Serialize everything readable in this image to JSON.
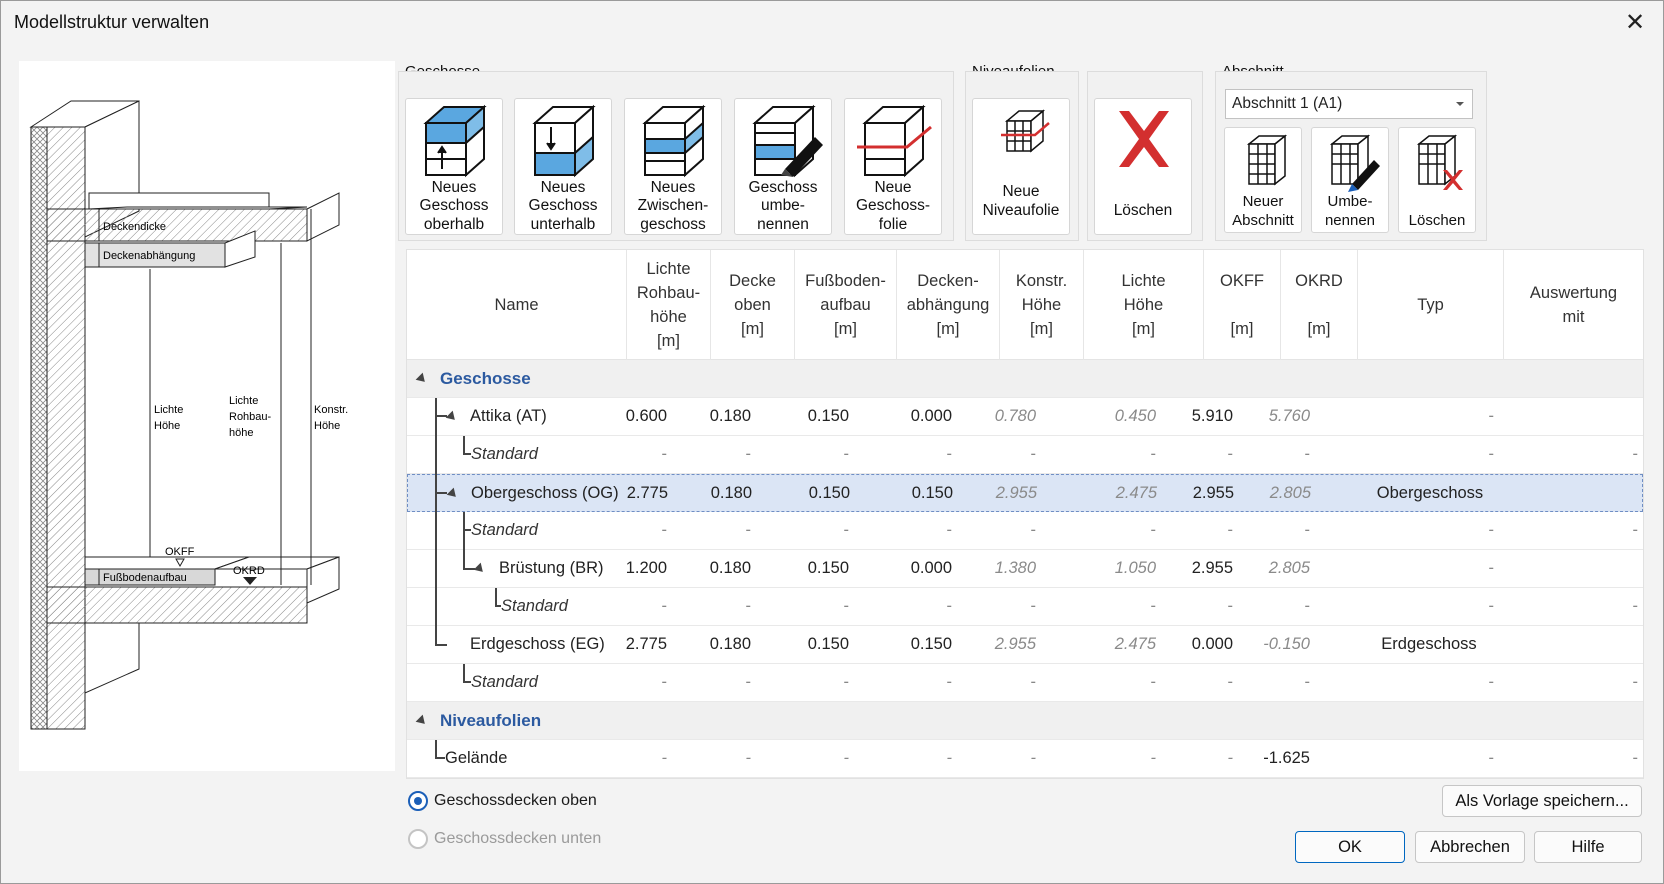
{
  "window": {
    "title": "Modellstruktur verwalten"
  },
  "diagram": {
    "labels": {
      "deckendicke": "Deckendicke",
      "deckenabhaengung": "Deckenabhängung",
      "lichte_hoehe": "Lichte\nHöhe",
      "lichte_rohbauhoehe": "Lichte\nRohbau-\nhöhe",
      "konstr_hoehe": "Konstr.\nHöhe",
      "okff": "OKFF",
      "okrd": "OKRD",
      "fussbodenaufbau": "Fußbodenaufbau"
    }
  },
  "toolbar": {
    "geschosse_label": "Geschosse",
    "niveaufolien_label": "Niveaufolien",
    "abschnitt_label": "Abschnitt",
    "buttons": {
      "new_above": "Neues\nGeschoss\noberhalb",
      "new_below": "Neues\nGeschoss\nunterhalb",
      "new_between": "Neues\nZwischen-\ngeschoss",
      "rename": "Geschoss\numbe-\nnennen",
      "new_foil": "Neue\nGeschoss-\nfolie",
      "new_level_foil": "Neue\nNiveaufolie",
      "delete": "Löschen",
      "new_section": "Neuer\nAbschnitt",
      "rename_section": "Umbe-\nnennen",
      "delete_section": "Löschen"
    },
    "abschnitt_selected": "Abschnitt 1 (A1)"
  },
  "table": {
    "headers": {
      "name": "Name",
      "lichte_rohbauhoehe": "Lichte\nRohbau-\nhöhe\n[m]",
      "decke_oben": "Decke\noben\n[m]",
      "fussbodenaufbau": "Fußboden-\naufbau\n[m]",
      "deckenabhaengung": "Decken-\nabhängung\n[m]",
      "konstr_hoehe": "Konstr.\nHöhe\n[m]",
      "lichte_hoehe": "Lichte\nHöhe\n[m]",
      "okff": "OKFF\n\n[m]",
      "okrd": "OKRD\n\n[m]",
      "typ": "Typ",
      "auswertung": "Auswertung\nmit\n"
    },
    "sections": {
      "geschosse": "Geschosse",
      "niveaufolien": "Niveaufolien"
    },
    "rows": [
      {
        "name": "Attika (AT)",
        "v": [
          "0.600",
          "0.180",
          "0.150",
          "0.000",
          "0.780",
          "0.450",
          "5.910",
          "5.760",
          "-",
          ""
        ]
      },
      {
        "name": "Standard",
        "v": [
          "-",
          "-",
          "-",
          "-",
          "-",
          "-",
          "-",
          "-",
          "-",
          "-"
        ]
      },
      {
        "name": "Obergeschoss (OG)",
        "v": [
          "2.775",
          "0.180",
          "0.150",
          "0.150",
          "2.955",
          "2.475",
          "2.955",
          "2.805",
          "Obergeschoss",
          ""
        ]
      },
      {
        "name": "Standard",
        "v": [
          "-",
          "-",
          "-",
          "-",
          "-",
          "-",
          "-",
          "-",
          "-",
          "-"
        ]
      },
      {
        "name": "Brüstung (BR)",
        "v": [
          "1.200",
          "0.180",
          "0.150",
          "0.000",
          "1.380",
          "1.050",
          "2.955",
          "2.805",
          "-",
          ""
        ]
      },
      {
        "name": "Standard",
        "v": [
          "-",
          "-",
          "-",
          "-",
          "-",
          "-",
          "-",
          "-",
          "-",
          "-"
        ]
      },
      {
        "name": "Erdgeschoss (EG)",
        "v": [
          "2.775",
          "0.180",
          "0.150",
          "0.150",
          "2.955",
          "2.475",
          "0.000",
          "-0.150",
          "Erdgeschoss",
          ""
        ]
      },
      {
        "name": "Standard",
        "v": [
          "-",
          "-",
          "-",
          "-",
          "-",
          "-",
          "-",
          "-",
          "-",
          "-"
        ]
      },
      {
        "name": "Gelände",
        "v": [
          "-",
          "-",
          "-",
          "-",
          "-",
          "-",
          "-",
          "-1.625",
          "-",
          "-"
        ]
      }
    ]
  },
  "options": {
    "decken_oben": "Geschossdecken oben",
    "decken_unten": "Geschossdecken unten"
  },
  "footer": {
    "save_template": "Als Vorlage speichern...",
    "ok": "OK",
    "cancel": "Abbrechen",
    "help": "Hilfe"
  },
  "colors": {
    "accent": "#2c5aa0",
    "selection": "#dbe5f5",
    "delete_red": "#d32f2f",
    "icon_blue": "#5aa7e0"
  }
}
